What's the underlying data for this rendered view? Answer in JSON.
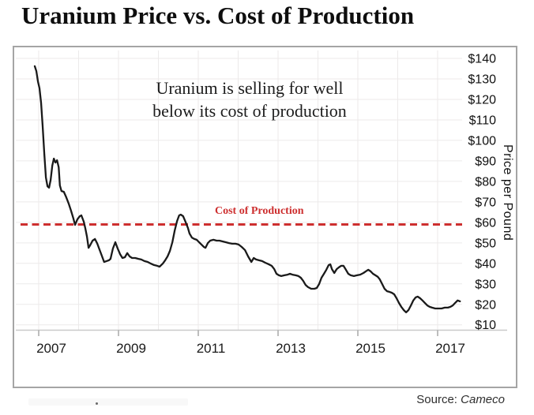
{
  "title": "Uranium Price vs. Cost of Production",
  "source": {
    "prefix": "Source:",
    "name": "Cameco"
  },
  "colors": {
    "price_line": "#1a1a1a",
    "cost_line": "#cd2f2f",
    "gridline": "#eceaea",
    "axis_line": "#c9c9c9",
    "frame_border": "#a5a5a5",
    "background": "#ffffff",
    "title_text": "#0e0e0e",
    "annotation_text": "#1c1c1c"
  },
  "chart_data": {
    "type": "line",
    "title": "Uranium Price vs. Cost of Production",
    "annotation_lines": [
      "Uranium is selling for well",
      "below its cost of production"
    ],
    "grid": true,
    "legend": false,
    "x_axis": {
      "tick_labels": [
        "2007",
        "2009",
        "2011",
        "2013",
        "2015",
        "2017"
      ],
      "tick_values": [
        2007,
        2009,
        2011,
        2013,
        2015,
        2017
      ],
      "range": [
        2006.8,
        2017.75
      ]
    },
    "y_axis": {
      "label": "Price per Pound",
      "tick_labels": [
        "$140",
        "$130",
        "$120",
        "$110",
        "$100",
        "$90",
        "$80",
        "$70",
        "$60",
        "$50",
        "$40",
        "$30",
        "$20",
        "$10"
      ],
      "tick_values": [
        140,
        130,
        120,
        110,
        100,
        90,
        80,
        70,
        60,
        50,
        40,
        30,
        20,
        10
      ],
      "range": [
        7,
        146
      ],
      "unit": "US$ per pound"
    },
    "cost_line": {
      "label": "Cost of Production",
      "value": 59,
      "style": "dashed",
      "color": "#cd2f2f"
    },
    "series": [
      {
        "name": "uranium-spot-price",
        "color": "#1a1a1a",
        "points": [
          [
            2006.9,
            136.2
          ],
          [
            2006.94,
            133.8
          ],
          [
            2006.98,
            128.8
          ],
          [
            2007.02,
            125.4
          ],
          [
            2007.06,
            118.4
          ],
          [
            2007.1,
            106.9
          ],
          [
            2007.14,
            93.4
          ],
          [
            2007.18,
            81.9
          ],
          [
            2007.22,
            77.6
          ],
          [
            2007.26,
            76.9
          ],
          [
            2007.3,
            80.7
          ],
          [
            2007.34,
            87.7
          ],
          [
            2007.38,
            91.1
          ],
          [
            2007.42,
            89.2
          ],
          [
            2007.46,
            90.3
          ],
          [
            2007.5,
            86.9
          ],
          [
            2007.53,
            78.0
          ],
          [
            2007.57,
            75.3
          ],
          [
            2007.63,
            74.9
          ],
          [
            2007.69,
            72.3
          ],
          [
            2007.75,
            69.2
          ],
          [
            2007.81,
            65.7
          ],
          [
            2007.87,
            61.9
          ],
          [
            2007.91,
            58.8
          ],
          [
            2007.97,
            61.5
          ],
          [
            2008.03,
            63.0
          ],
          [
            2008.07,
            63.4
          ],
          [
            2008.13,
            60.3
          ],
          [
            2008.17,
            56.9
          ],
          [
            2008.21,
            53.0
          ],
          [
            2008.25,
            47.6
          ],
          [
            2008.29,
            48.8
          ],
          [
            2008.35,
            51.1
          ],
          [
            2008.41,
            51.9
          ],
          [
            2008.47,
            49.6
          ],
          [
            2008.52,
            46.9
          ],
          [
            2008.58,
            43.8
          ],
          [
            2008.64,
            40.7
          ],
          [
            2008.7,
            41.1
          ],
          [
            2008.76,
            41.5
          ],
          [
            2008.8,
            42.2
          ],
          [
            2008.86,
            47.2
          ],
          [
            2008.92,
            50.3
          ],
          [
            2008.98,
            47.2
          ],
          [
            2009.04,
            44.5
          ],
          [
            2009.1,
            42.6
          ],
          [
            2009.16,
            43.0
          ],
          [
            2009.22,
            45.0
          ],
          [
            2009.28,
            43.4
          ],
          [
            2009.34,
            42.6
          ],
          [
            2009.42,
            42.6
          ],
          [
            2009.5,
            42.2
          ],
          [
            2009.57,
            41.9
          ],
          [
            2009.65,
            41.1
          ],
          [
            2009.73,
            40.7
          ],
          [
            2009.81,
            39.9
          ],
          [
            2009.89,
            39.2
          ],
          [
            2009.97,
            38.8
          ],
          [
            2010.03,
            38.4
          ],
          [
            2010.11,
            39.9
          ],
          [
            2010.17,
            41.5
          ],
          [
            2010.23,
            43.4
          ],
          [
            2010.29,
            46.1
          ],
          [
            2010.35,
            50.3
          ],
          [
            2010.41,
            56.1
          ],
          [
            2010.47,
            60.7
          ],
          [
            2010.52,
            63.4
          ],
          [
            2010.56,
            63.8
          ],
          [
            2010.62,
            63.0
          ],
          [
            2010.68,
            60.3
          ],
          [
            2010.74,
            57.3
          ],
          [
            2010.78,
            54.6
          ],
          [
            2010.84,
            52.6
          ],
          [
            2010.9,
            51.9
          ],
          [
            2010.96,
            51.5
          ],
          [
            2011.02,
            50.3
          ],
          [
            2011.08,
            49.2
          ],
          [
            2011.14,
            48.0
          ],
          [
            2011.18,
            47.6
          ],
          [
            2011.24,
            49.9
          ],
          [
            2011.3,
            51.1
          ],
          [
            2011.38,
            51.5
          ],
          [
            2011.46,
            51.1
          ],
          [
            2011.53,
            51.1
          ],
          [
            2011.61,
            50.7
          ],
          [
            2011.69,
            50.3
          ],
          [
            2011.77,
            49.9
          ],
          [
            2011.85,
            49.6
          ],
          [
            2011.93,
            49.6
          ],
          [
            2012.01,
            49.2
          ],
          [
            2012.09,
            48.0
          ],
          [
            2012.17,
            46.5
          ],
          [
            2012.25,
            43.4
          ],
          [
            2012.33,
            40.7
          ],
          [
            2012.39,
            42.6
          ],
          [
            2012.45,
            41.9
          ],
          [
            2012.52,
            41.5
          ],
          [
            2012.6,
            41.1
          ],
          [
            2012.68,
            40.3
          ],
          [
            2012.76,
            39.6
          ],
          [
            2012.84,
            38.8
          ],
          [
            2012.9,
            37.3
          ],
          [
            2012.96,
            34.9
          ],
          [
            2013.02,
            34.2
          ],
          [
            2013.08,
            33.8
          ],
          [
            2013.16,
            34.2
          ],
          [
            2013.24,
            34.5
          ],
          [
            2013.3,
            34.9
          ],
          [
            2013.36,
            34.5
          ],
          [
            2013.44,
            34.2
          ],
          [
            2013.51,
            33.8
          ],
          [
            2013.57,
            33.0
          ],
          [
            2013.63,
            31.5
          ],
          [
            2013.69,
            29.5
          ],
          [
            2013.75,
            28.4
          ],
          [
            2013.83,
            27.6
          ],
          [
            2013.91,
            27.6
          ],
          [
            2013.97,
            28.0
          ],
          [
            2014.03,
            29.9
          ],
          [
            2014.09,
            33.0
          ],
          [
            2014.15,
            34.9
          ],
          [
            2014.21,
            36.9
          ],
          [
            2014.27,
            39.2
          ],
          [
            2014.31,
            39.5
          ],
          [
            2014.35,
            37.2
          ],
          [
            2014.41,
            35.3
          ],
          [
            2014.47,
            37.2
          ],
          [
            2014.52,
            38.0
          ],
          [
            2014.58,
            38.8
          ],
          [
            2014.64,
            38.8
          ],
          [
            2014.7,
            36.9
          ],
          [
            2014.76,
            34.9
          ],
          [
            2014.82,
            34.2
          ],
          [
            2014.9,
            33.8
          ],
          [
            2014.98,
            34.2
          ],
          [
            2015.06,
            34.5
          ],
          [
            2015.14,
            35.3
          ],
          [
            2015.2,
            36.1
          ],
          [
            2015.26,
            36.9
          ],
          [
            2015.32,
            36.1
          ],
          [
            2015.38,
            34.9
          ],
          [
            2015.44,
            34.2
          ],
          [
            2015.5,
            33.4
          ],
          [
            2015.55,
            32.2
          ],
          [
            2015.61,
            29.9
          ],
          [
            2015.67,
            27.6
          ],
          [
            2015.73,
            26.4
          ],
          [
            2015.79,
            26.1
          ],
          [
            2015.85,
            25.7
          ],
          [
            2015.91,
            24.9
          ],
          [
            2015.97,
            23.0
          ],
          [
            2016.03,
            20.7
          ],
          [
            2016.09,
            18.8
          ],
          [
            2016.15,
            17.2
          ],
          [
            2016.21,
            16.1
          ],
          [
            2016.27,
            17.2
          ],
          [
            2016.33,
            19.5
          ],
          [
            2016.39,
            21.9
          ],
          [
            2016.45,
            23.4
          ],
          [
            2016.5,
            23.8
          ],
          [
            2016.56,
            23.0
          ],
          [
            2016.62,
            21.9
          ],
          [
            2016.68,
            20.7
          ],
          [
            2016.74,
            19.5
          ],
          [
            2016.8,
            18.8
          ],
          [
            2016.86,
            18.4
          ],
          [
            2016.94,
            18.0
          ],
          [
            2017.02,
            18.0
          ],
          [
            2017.1,
            18.0
          ],
          [
            2017.18,
            18.4
          ],
          [
            2017.26,
            18.4
          ],
          [
            2017.32,
            18.8
          ],
          [
            2017.38,
            19.5
          ],
          [
            2017.44,
            20.7
          ],
          [
            2017.5,
            21.9
          ],
          [
            2017.56,
            21.5
          ]
        ]
      }
    ]
  }
}
